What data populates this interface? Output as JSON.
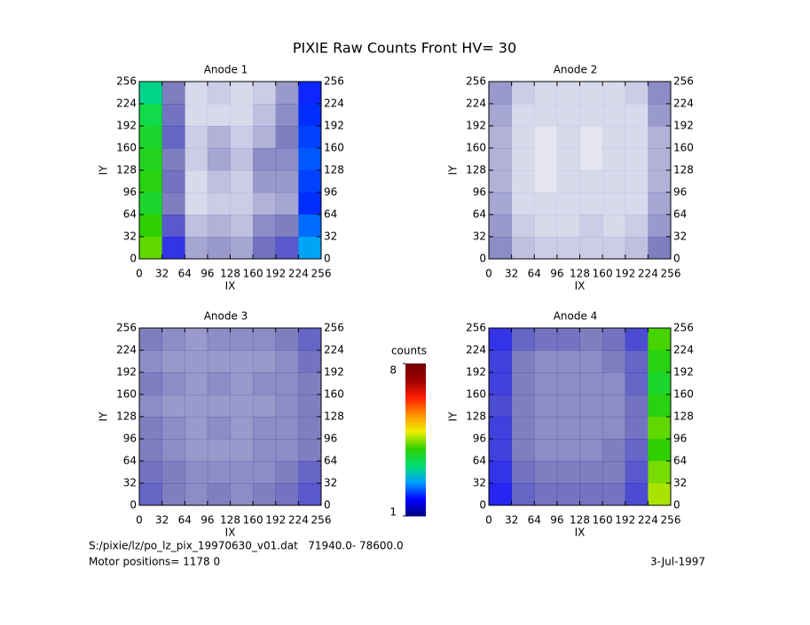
{
  "title": "PIXIE Raw Counts Front HV= 30",
  "colorbar": {
    "label": "counts",
    "zlim": [
      1,
      8
    ],
    "zticks": [
      1,
      8
    ],
    "colorscale": [
      "#000080",
      "#0000ff",
      "#00a0ff",
      "#00e070",
      "#30d000",
      "#f0f000",
      "#ff9000",
      "#ff2000",
      "#a00000",
      "#700000"
    ]
  },
  "chart_data": [
    {
      "type": "heatmap",
      "title": "Anode 1",
      "x_label": "IX",
      "y_label": "IY",
      "xlim": [
        0,
        256
      ],
      "ylim": [
        0,
        256
      ],
      "xticks": [
        0,
        32,
        64,
        96,
        128,
        160,
        192,
        224,
        256
      ],
      "yticks": [
        0,
        32,
        64,
        96,
        128,
        160,
        192,
        224,
        256
      ],
      "values": [
        [
          3.2,
          1.0,
          0.3,
          0.4,
          0.3,
          0.4,
          0.8,
          1.9
        ],
        [
          3.6,
          1.1,
          0.3,
          0.3,
          0.3,
          0.5,
          0.9,
          2.0
        ],
        [
          3.8,
          1.2,
          0.4,
          0.6,
          0.4,
          0.6,
          1.0,
          2.1
        ],
        [
          3.9,
          1.0,
          0.4,
          0.7,
          0.5,
          0.9,
          0.9,
          2.2
        ],
        [
          4.0,
          1.1,
          0.3,
          0.5,
          0.4,
          0.8,
          0.8,
          2.1
        ],
        [
          3.8,
          1.0,
          0.3,
          0.4,
          0.4,
          0.6,
          0.7,
          2.0
        ],
        [
          4.1,
          1.3,
          0.5,
          0.6,
          0.5,
          0.9,
          1.0,
          2.3
        ],
        [
          4.3,
          1.6,
          0.7,
          0.8,
          0.7,
          1.1,
          1.3,
          2.6
        ]
      ]
    },
    {
      "type": "heatmap",
      "title": "Anode 2",
      "x_label": "IX",
      "y_label": "IY",
      "xlim": [
        0,
        256
      ],
      "ylim": [
        0,
        256
      ],
      "xticks": [
        0,
        32,
        64,
        96,
        128,
        160,
        192,
        224,
        256
      ],
      "yticks": [
        0,
        32,
        64,
        96,
        128,
        160,
        192,
        224,
        256
      ],
      "values": [
        [
          0.8,
          0.4,
          0.3,
          0.3,
          0.3,
          0.3,
          0.4,
          0.9
        ],
        [
          0.7,
          0.3,
          0.3,
          0.3,
          0.3,
          0.3,
          0.3,
          0.8
        ],
        [
          0.6,
          0.3,
          0.2,
          0.3,
          0.2,
          0.3,
          0.3,
          0.6
        ],
        [
          0.6,
          0.3,
          0.2,
          0.3,
          0.2,
          0.3,
          0.3,
          0.6
        ],
        [
          0.6,
          0.3,
          0.2,
          0.3,
          0.3,
          0.3,
          0.3,
          0.6
        ],
        [
          0.7,
          0.3,
          0.3,
          0.3,
          0.3,
          0.3,
          0.3,
          0.7
        ],
        [
          0.8,
          0.4,
          0.3,
          0.3,
          0.4,
          0.3,
          0.4,
          0.8
        ],
        [
          0.9,
          0.5,
          0.4,
          0.4,
          0.4,
          0.4,
          0.5,
          1.0
        ]
      ]
    },
    {
      "type": "heatmap",
      "title": "Anode 3",
      "x_label": "IX",
      "y_label": "IY",
      "xlim": [
        0,
        256
      ],
      "ylim": [
        0,
        256
      ],
      "xticks": [
        0,
        32,
        64,
        96,
        128,
        160,
        192,
        224,
        256
      ],
      "yticks": [
        0,
        32,
        64,
        96,
        128,
        160,
        192,
        224,
        256
      ],
      "values": [
        [
          1.0,
          0.9,
          0.8,
          0.9,
          0.9,
          0.9,
          1.0,
          1.2
        ],
        [
          0.9,
          0.8,
          0.8,
          0.8,
          0.8,
          0.8,
          0.9,
          1.1
        ],
        [
          1.0,
          0.9,
          0.8,
          0.9,
          0.8,
          0.9,
          0.9,
          1.0
        ],
        [
          0.9,
          0.8,
          0.8,
          0.8,
          0.8,
          0.8,
          0.9,
          1.0
        ],
        [
          1.0,
          0.9,
          0.8,
          0.9,
          0.8,
          0.9,
          0.9,
          1.0
        ],
        [
          1.0,
          0.9,
          0.8,
          0.8,
          0.8,
          0.9,
          0.9,
          1.0
        ],
        [
          1.1,
          1.0,
          0.9,
          0.9,
          0.9,
          0.9,
          1.0,
          1.2
        ],
        [
          1.2,
          1.0,
          0.9,
          1.0,
          0.9,
          1.0,
          1.1,
          1.3
        ]
      ]
    },
    {
      "type": "heatmap",
      "title": "Anode 4",
      "x_label": "IX",
      "y_label": "IY",
      "xlim": [
        0,
        256
      ],
      "ylim": [
        0,
        256
      ],
      "xticks": [
        0,
        32,
        64,
        96,
        128,
        160,
        192,
        224,
        256
      ],
      "yticks": [
        0,
        32,
        64,
        96,
        128,
        160,
        192,
        224,
        256
      ],
      "values": [
        [
          1.6,
          1.2,
          1.1,
          1.1,
          1.0,
          1.1,
          1.4,
          4.2
        ],
        [
          1.5,
          1.0,
          0.9,
          0.9,
          0.9,
          1.0,
          1.2,
          4.0
        ],
        [
          1.5,
          1.0,
          0.9,
          0.9,
          0.9,
          0.9,
          1.2,
          3.8
        ],
        [
          1.4,
          1.0,
          0.9,
          0.9,
          0.9,
          0.9,
          1.1,
          4.0
        ],
        [
          1.5,
          1.0,
          0.9,
          0.9,
          0.9,
          0.9,
          1.1,
          4.3
        ],
        [
          1.5,
          1.0,
          0.9,
          0.9,
          0.9,
          1.0,
          1.2,
          4.1
        ],
        [
          1.6,
          1.1,
          1.0,
          1.0,
          1.0,
          1.0,
          1.3,
          4.4
        ],
        [
          1.7,
          1.2,
          1.1,
          1.1,
          1.1,
          1.1,
          1.4,
          4.6
        ]
      ]
    }
  ],
  "footer": {
    "file": "S:/pixie/lz/po_lz_pix_19970630_v01.dat   71940.0- 78600.0",
    "motor": "Motor positions= 1178 0",
    "date": "3-Jul-1997"
  }
}
